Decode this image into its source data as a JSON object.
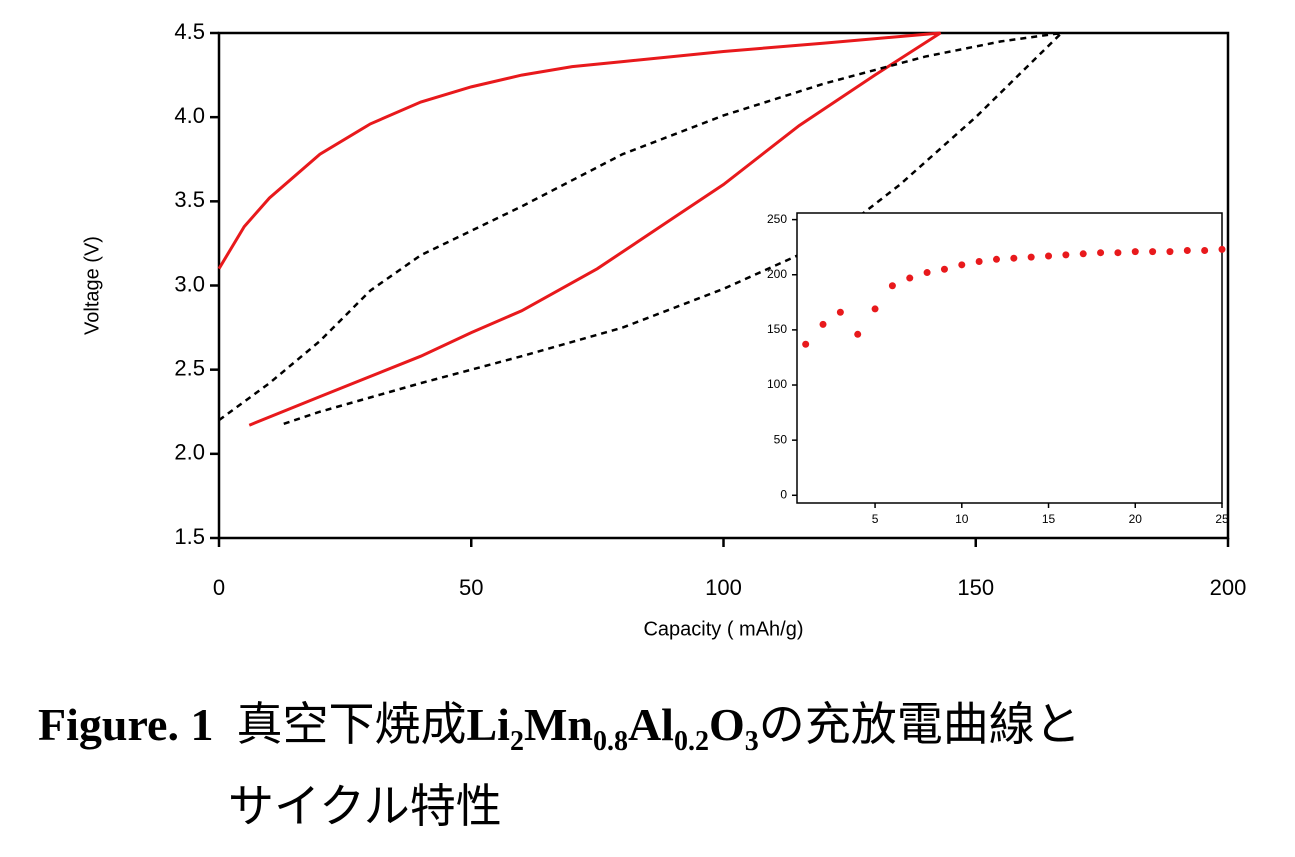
{
  "chart_data": [
    {
      "type": "line",
      "xlabel": "Capacity ( mAh/g)",
      "ylabel": "Voltage (V)",
      "xlim": [
        0,
        200
      ],
      "ylim": [
        1.5,
        4.5
      ],
      "xticks": [
        0,
        50,
        100,
        150,
        200
      ],
      "yticks": [
        1.5,
        {
          "value": 2,
          "label": "2.0"
        },
        2.5,
        {
          "value": 3,
          "label": "3.0"
        },
        3.5,
        {
          "value": 4,
          "label": "4.0"
        },
        4.5
      ],
      "series": [
        {
          "color": "#e8191c",
          "linestyle": "solid",
          "x": [
            0,
            5,
            10,
            20,
            30,
            40,
            50,
            60,
            70,
            80,
            100,
            120,
            143,
            130,
            115,
            100,
            90,
            75,
            60,
            50,
            40,
            20,
            6
          ],
          "values": [
            3.1,
            3.35,
            3.52,
            3.78,
            3.96,
            4.09,
            4.18,
            4.25,
            4.3,
            4.33,
            4.39,
            4.44,
            4.5,
            4.25,
            3.95,
            3.6,
            3.4,
            3.1,
            2.85,
            2.72,
            2.58,
            2.34,
            2.17
          ]
        },
        {
          "color": "#000000",
          "linestyle": "dashed",
          "x": [
            0,
            10,
            20,
            30,
            40,
            60,
            80,
            100,
            120,
            140,
            155,
            167,
            150,
            135,
            120,
            100,
            80,
            60,
            40,
            20,
            12
          ],
          "values": [
            2.2,
            2.42,
            2.67,
            2.97,
            3.18,
            3.47,
            3.78,
            4.01,
            4.2,
            4.36,
            4.45,
            4.5,
            4.0,
            3.6,
            3.25,
            2.98,
            2.75,
            2.58,
            2.42,
            2.25,
            2.17
          ]
        }
      ]
    },
    {
      "type": "scatter",
      "color": "#e8191c",
      "xlim": [
        0.5,
        25
      ],
      "ylim": [
        -7,
        256
      ],
      "xticks": [
        5,
        10,
        15,
        20,
        25
      ],
      "yticks": [
        0,
        50,
        100,
        150,
        200,
        250
      ],
      "x": [
        1,
        2,
        3,
        4,
        5,
        6,
        7,
        8,
        9,
        10,
        11,
        12,
        13,
        14,
        15,
        16,
        17,
        18,
        19,
        20,
        21,
        22,
        23,
        24,
        25
      ],
      "values": [
        137,
        155,
        166,
        146,
        169,
        190,
        197,
        202,
        205,
        209,
        212,
        214,
        215,
        216,
        217,
        218,
        219,
        220,
        220,
        221,
        221,
        221,
        222,
        222,
        223
      ]
    }
  ],
  "caption": {
    "label": "Figure.  1",
    "parts": [
      "真空下焼成",
      "Li",
      "2",
      "Mn",
      "0.8",
      "Al",
      "0.2",
      "O",
      "3",
      "の充放電曲線と"
    ],
    "line2": "サイクル特性"
  }
}
